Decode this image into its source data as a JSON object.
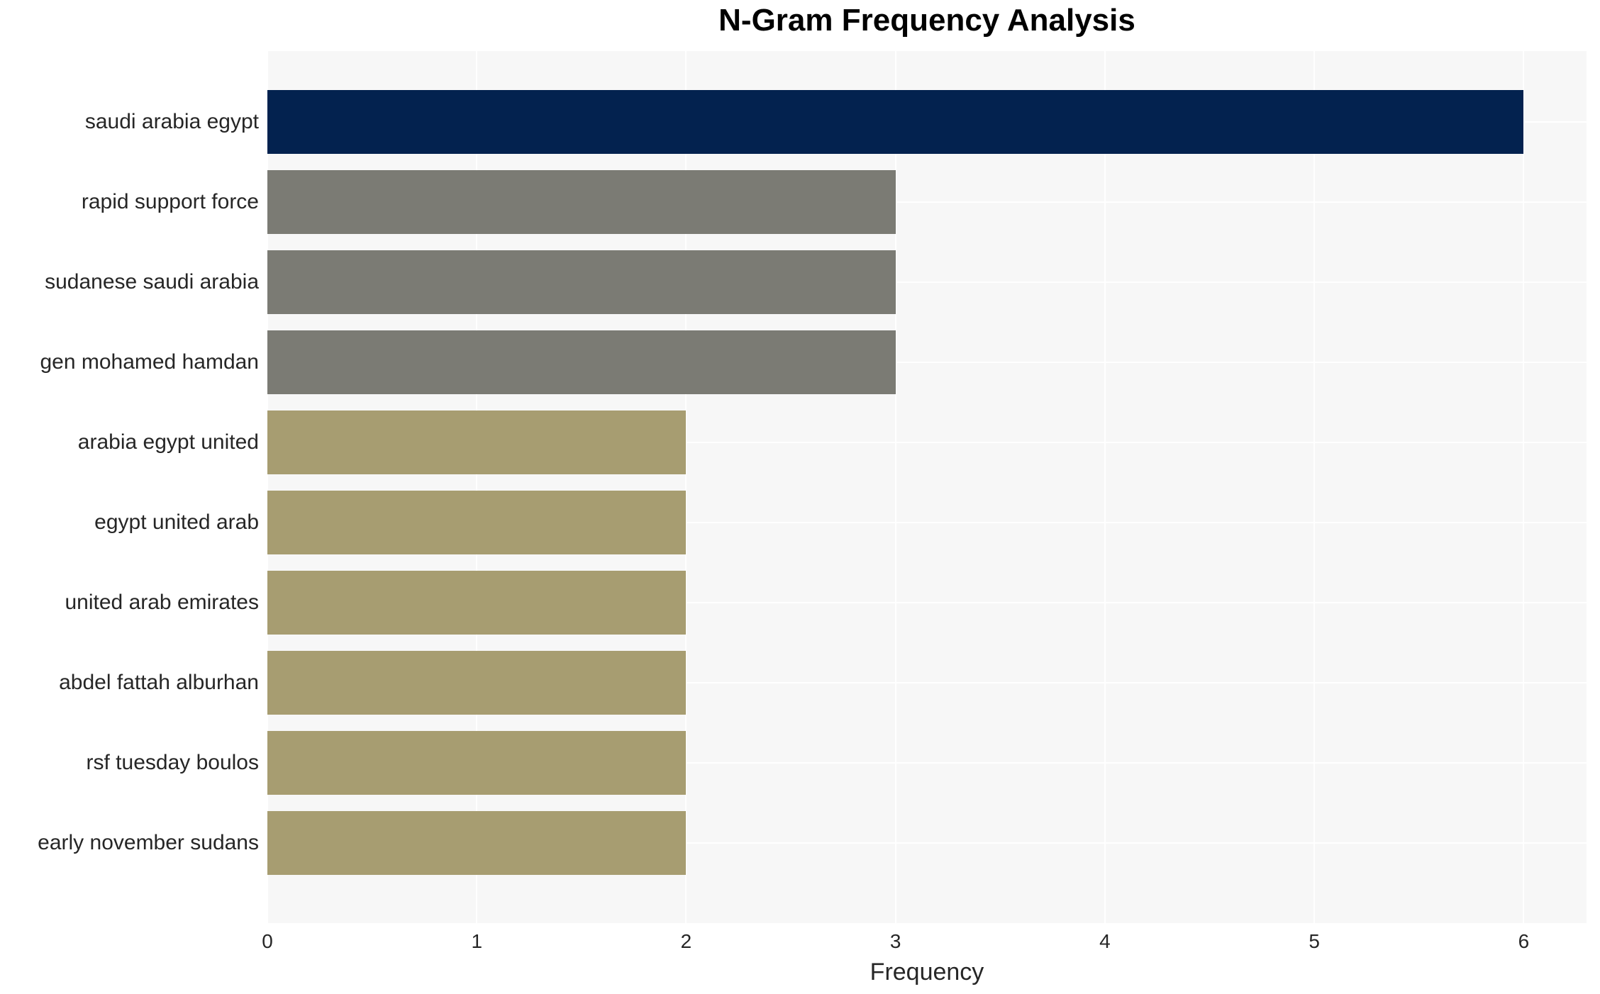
{
  "title": "N-Gram Frequency Analysis",
  "chart_data": {
    "type": "bar",
    "orientation": "horizontal",
    "title": "N-Gram Frequency Analysis",
    "xlabel": "Frequency",
    "ylabel": "",
    "categories": [
      "saudi arabia egypt",
      "rapid support force",
      "sudanese saudi arabia",
      "gen mohamed hamdan",
      "arabia egypt united",
      "egypt united arab",
      "united arab emirates",
      "abdel fattah alburhan",
      "rsf tuesday boulos",
      "early november sudans"
    ],
    "values": [
      6,
      3,
      3,
      3,
      2,
      2,
      2,
      2,
      2,
      2
    ],
    "bar_colors": [
      "#03224f",
      "#7b7b74",
      "#7b7b74",
      "#7b7b74",
      "#a79d71",
      "#a79d71",
      "#a79d71",
      "#a79d71",
      "#a79d71",
      "#a79d71"
    ],
    "xlim": [
      0,
      6.3
    ],
    "xticks": [
      0,
      1,
      2,
      3,
      4,
      5,
      6
    ],
    "grid": true,
    "legend_position": "none",
    "plot_background": "#f7f7f7",
    "grid_color": "#ffffff",
    "text_color": "#262626"
  }
}
